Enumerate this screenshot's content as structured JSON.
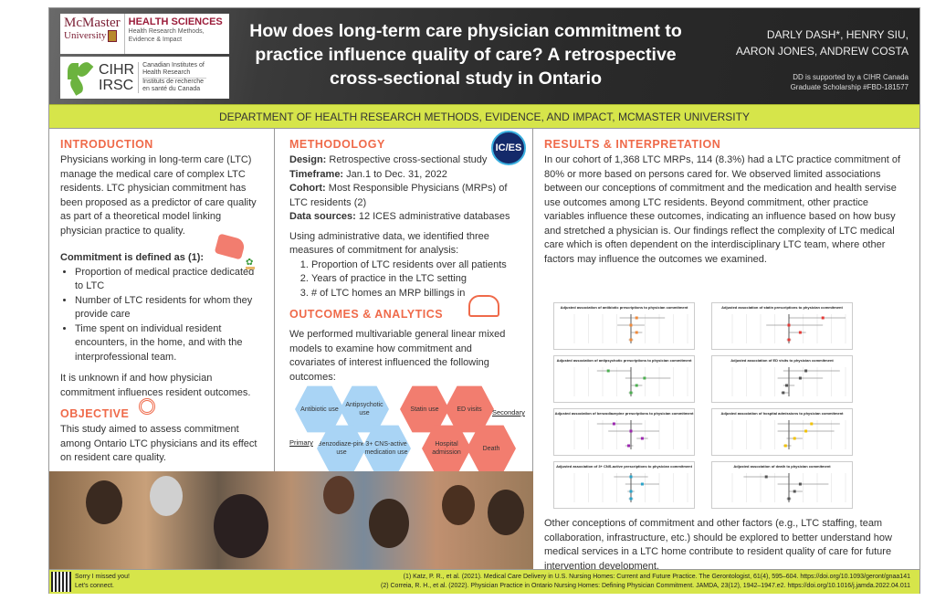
{
  "header": {
    "logo_mcmaster": "McMaster University",
    "logo_health_sciences": "HEALTH SCIENCES",
    "logo_hs_sub": "Health Research Methods, Evidence & Impact",
    "logo_cihr": "CIHR IRSC",
    "logo_cihr_en": "Canadian Institutes of Health Research",
    "logo_cihr_fr": "Instituts de recherche en santé du Canada",
    "title": "How does long-term care physician commitment to practice influence quality of care? A retrospective cross-sectional study in Ontario",
    "authors_line1": "DARLY DASH*, HENRY SIU,",
    "authors_line2": "AARON JONES, ANDREW COSTA",
    "support_line1": "DD is supported by a CIHR Canada",
    "support_line2": "Graduate Scholarship #FBD-181577"
  },
  "department": "DEPARTMENT OF HEALTH RESEARCH METHODS, EVIDENCE, AND IMPACT, MCMASTER UNIVERSITY",
  "introduction": {
    "heading": "INTRODUCTION",
    "text": "Physicians working in long-term care (LTC) manage the medical care of complex LTC residents. LTC physician commitment has been proposed as a predictor of care quality as part of a theoretical model linking physician practice to quality.",
    "commitment_heading": "Commitment is defined as (1):",
    "commitment_items": [
      "Proportion of medical practice dedicated to LTC",
      "Number of LTC residents for whom they provide care",
      "Time spent on individual resident encounters, in the home, and with the interprofessional team."
    ],
    "closing": "It is unknown if and how physician commitment influences resident outcomes."
  },
  "objective": {
    "heading": "OBJECTIVE",
    "text": "This study aimed to assess commitment among Ontario LTC physicians and its effect on resident care quality."
  },
  "methodology": {
    "heading": "METHODOLOGY",
    "ices_logo": "IC/ES",
    "design_label": "Design:",
    "design": " Retrospective cross-sectional study",
    "timeframe_label": "Timeframe:",
    "timeframe": " Jan.1 to Dec. 31, 2022",
    "cohort_label": "Cohort:",
    "cohort": " Most Responsible Physicians (MRPs) of LTC residents (2)",
    "sources_label": "Data sources:",
    "sources": " 12 ICES administrative databases",
    "measures_intro": "Using administrative data, we identified three measures of commitment for analysis:",
    "measures": [
      "Proportion of LTC residents over all patients",
      "Years of practice in the LTC setting",
      "# of LTC homes an MRP billings in"
    ]
  },
  "outcomes": {
    "heading": "OUTCOMES & ANALYTICS",
    "text": "We performed multivariable general linear mixed models to examine how commitment and covariates of interest influenced the following outcomes:",
    "primary_label": "Primary",
    "secondary_label": "Secondary",
    "primary": [
      "Antibiotic use",
      "Antipsychotic use",
      "Benzodiaze-pine use",
      "3+ CNS-active medication use"
    ],
    "secondary": [
      "Statin use",
      "ED visits",
      "Hospital admission",
      "Death"
    ]
  },
  "results": {
    "heading": "RESULTS & INTERPRETATION",
    "text": "In our cohort of 1,368 LTC MRPs, 114 (8.3%) had a LTC practice commitment of 80% or more based on persons cared for. We observed limited associations between our conceptions of commitment and the medication and health servise use outcomes among LTC residents. Beyond commitment, other practice variables influence these outcomes, indicating an influence based on how busy and stretched a physician is. Our findings reflect the complexity of LTC medical care which is often dependent on the interdisciplinary LTC team, where other factors may influence the outcomes we examined.",
    "plots": [
      {
        "title": "Adjusted association of antibiotic prescriptions to physician commitment",
        "color": "#f08a3a"
      },
      {
        "title": "Adjusted association of statin prescriptions to physician commitment",
        "color": "#e53935"
      },
      {
        "title": "Adjusted association of antipsychotic prescriptions to physician commitment",
        "color": "#4caf50"
      },
      {
        "title": "Adjusted association of ED visits to physician commitment",
        "color": "#555555"
      },
      {
        "title": "Adjusted association of benzodiazepine prescriptions to physician commitment",
        "color": "#9c27b0"
      },
      {
        "title": "Adjusted association of hospital admissions to physician commitment",
        "color": "#f2c200"
      },
      {
        "title": "Adjusted association of 3+ CNS-active prescriptions to physician commitment",
        "color": "#29a3c9"
      },
      {
        "title": "Adjusted association of death to physician commitment",
        "color": "#555555"
      }
    ],
    "closing": "Other conceptions of commitment and other factors (e.g., LTC staffing, team collaboration, infrastructure, etc.) should be explored to better understand how medical services in a LTC home contribute to resident quality of care for future intervention development."
  },
  "footer": {
    "thanks_line1": "Sorry I missed you!",
    "thanks_line2": "Let's connect.",
    "ref1": "(1) Katz, P. R., et al. (2021). Medical Care Delivery in U.S. Nursing Homes: Current and Future Practice. The Gerontologist, 61(4), 595–604. https://doi.org/10.1093/geront/gnaa141",
    "ref2": "(2) Correia, R. H., et al. (2022). Physician Practice in Ontario Nursing Homes: Defining Physician Commitment. JAMDA, 23(12), 1942–1947.e2. https://doi.org/10.1016/j.jamda.2022.04.011"
  },
  "colors": {
    "accent": "#ef6a4a",
    "band": "#d6e54a",
    "primary_hex": "#a9d4f5",
    "secondary_hex": "#f27d6f"
  }
}
